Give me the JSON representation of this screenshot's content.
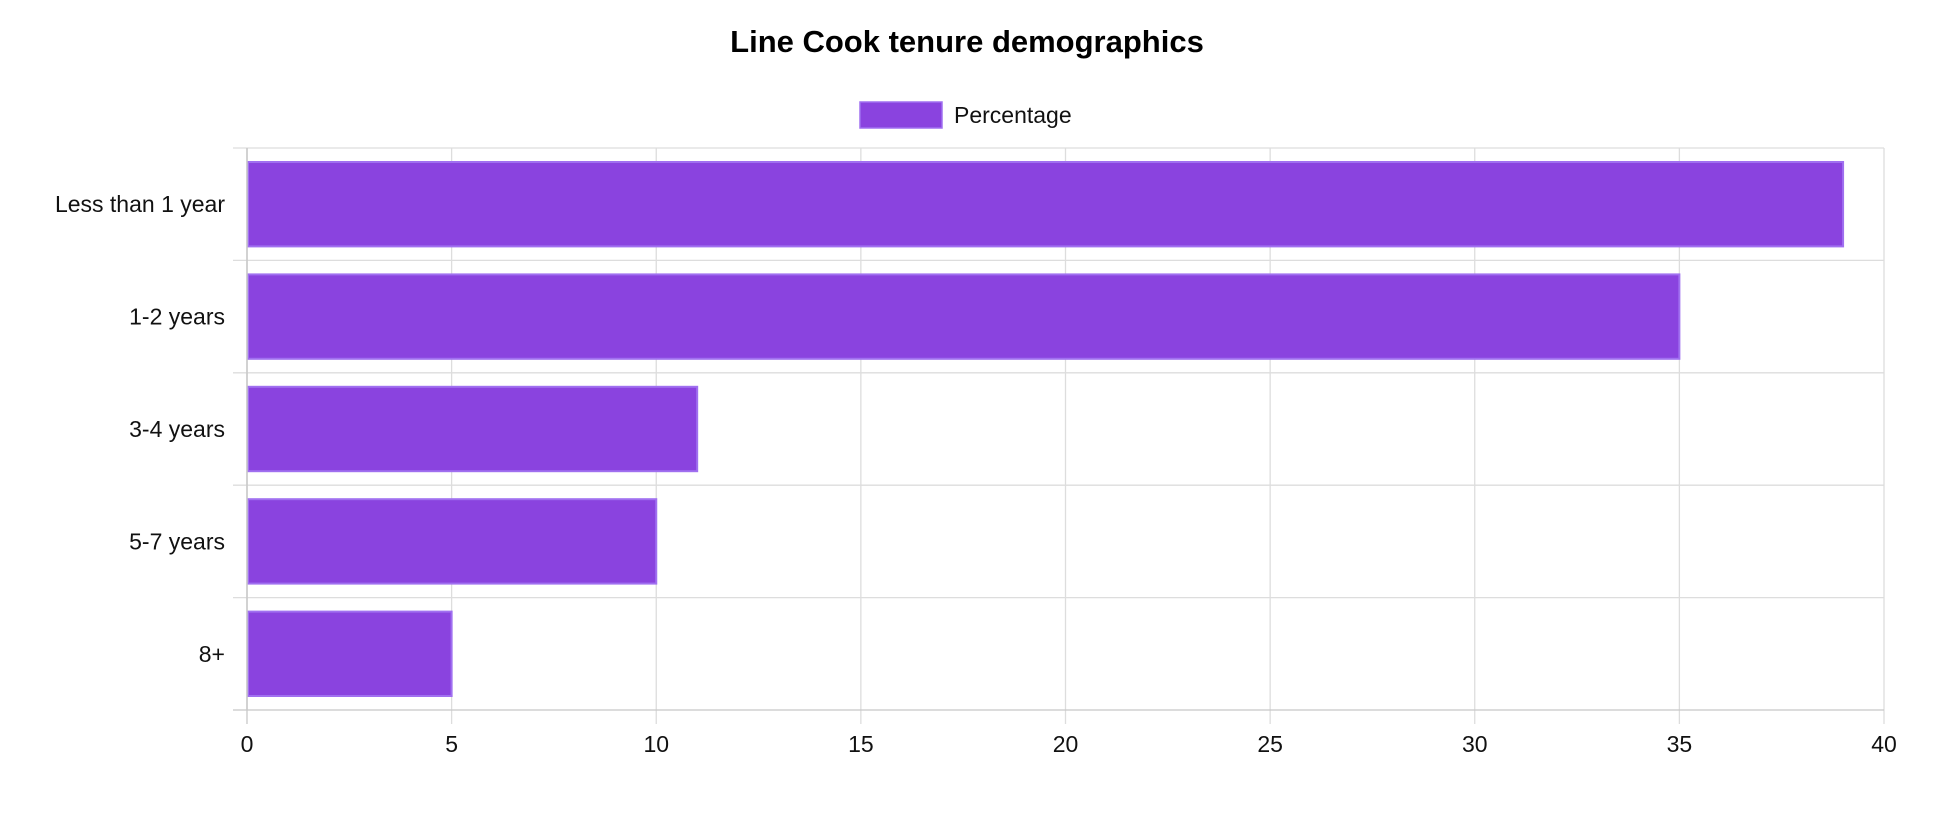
{
  "chart_data": {
    "type": "bar",
    "orientation": "horizontal",
    "title": "Line Cook tenure demographics",
    "categories": [
      "Less than 1 year",
      "1-2 years",
      "3-4 years",
      "5-7 years",
      "8+"
    ],
    "series": [
      {
        "name": "Percentage",
        "values": [
          39,
          35,
          11,
          10,
          5
        ]
      }
    ],
    "xlabel": "",
    "ylabel": "",
    "xlim": [
      0,
      40
    ],
    "x_ticks": [
      "0",
      "5",
      "10",
      "15",
      "20",
      "25",
      "30",
      "35",
      "40"
    ],
    "grid": true,
    "legend_position": "top-center",
    "colors": {
      "bar_fill": "#8a43df",
      "bar_border": "#a070f0",
      "grid": "#dddddd",
      "axis": "#c8c8c8"
    }
  }
}
